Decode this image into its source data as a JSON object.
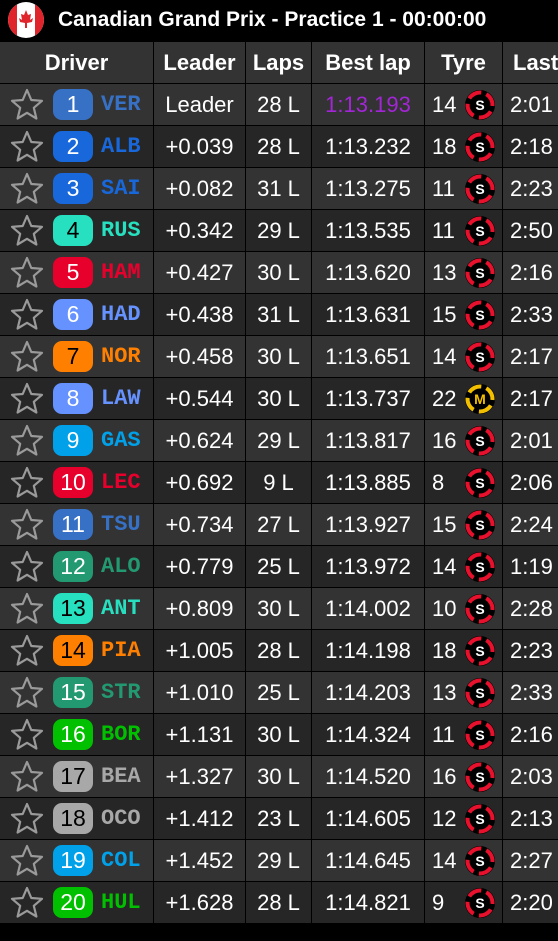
{
  "header": {
    "title": "Canadian Grand Prix - Practice 1 - 00:00:00"
  },
  "table": {
    "columns": [
      "Driver",
      "Leader",
      "Laps",
      "Best lap",
      "Tyre",
      "Last"
    ],
    "highlight_color": "#a326d6",
    "tyre_colors": {
      "S": "#e8112d",
      "M": "#f2c000"
    },
    "rows": [
      {
        "pos": 1,
        "code": "VER",
        "color": "#3671c6",
        "gap": "Leader",
        "laps": "28 L",
        "best": "1:13.193",
        "best_highlight": true,
        "tyre_age": 14,
        "tyre": "S",
        "last": "2:01"
      },
      {
        "pos": 2,
        "code": "ALB",
        "color": "#1868db",
        "gap": "+0.039",
        "laps": "28 L",
        "best": "1:13.232",
        "tyre_age": 18,
        "tyre": "S",
        "last": "2:18"
      },
      {
        "pos": 3,
        "code": "SAI",
        "color": "#1868db",
        "gap": "+0.082",
        "laps": "31 L",
        "best": "1:13.275",
        "tyre_age": 11,
        "tyre": "S",
        "last": "2:23"
      },
      {
        "pos": 4,
        "code": "RUS",
        "color": "#27e0c0",
        "gap": "+0.342",
        "laps": "29 L",
        "best": "1:13.535",
        "tyre_age": 11,
        "tyre": "S",
        "last": "2:50"
      },
      {
        "pos": 5,
        "code": "HAM",
        "color": "#e8002d",
        "gap": "+0.427",
        "laps": "30 L",
        "best": "1:13.620",
        "tyre_age": 13,
        "tyre": "S",
        "last": "2:16"
      },
      {
        "pos": 6,
        "code": "HAD",
        "color": "#6692ff",
        "gap": "+0.438",
        "laps": "31 L",
        "best": "1:13.631",
        "tyre_age": 15,
        "tyre": "S",
        "last": "2:33"
      },
      {
        "pos": 7,
        "code": "NOR",
        "color": "#ff8000",
        "gap": "+0.458",
        "laps": "30 L",
        "best": "1:13.651",
        "tyre_age": 14,
        "tyre": "S",
        "last": "2:17"
      },
      {
        "pos": 8,
        "code": "LAW",
        "color": "#6692ff",
        "gap": "+0.544",
        "laps": "30 L",
        "best": "1:13.737",
        "tyre_age": 22,
        "tyre": "M",
        "last": "2:17"
      },
      {
        "pos": 9,
        "code": "GAS",
        "color": "#00a1e8",
        "gap": "+0.624",
        "laps": "29 L",
        "best": "1:13.817",
        "tyre_age": 16,
        "tyre": "S",
        "last": "2:01"
      },
      {
        "pos": 10,
        "code": "LEC",
        "color": "#e8002d",
        "gap": "+0.692",
        "laps": "9 L",
        "best": "1:13.885",
        "tyre_age": 8,
        "tyre": "S",
        "last": "2:06"
      },
      {
        "pos": 11,
        "code": "TSU",
        "color": "#3671c6",
        "gap": "+0.734",
        "laps": "27 L",
        "best": "1:13.927",
        "tyre_age": 15,
        "tyre": "S",
        "last": "2:24"
      },
      {
        "pos": 12,
        "code": "ALO",
        "color": "#229971",
        "gap": "+0.779",
        "laps": "25 L",
        "best": "1:13.972",
        "tyre_age": 14,
        "tyre": "S",
        "last": "1:19"
      },
      {
        "pos": 13,
        "code": "ANT",
        "color": "#27e0c0",
        "gap": "+0.809",
        "laps": "30 L",
        "best": "1:14.002",
        "tyre_age": 10,
        "tyre": "S",
        "last": "2:28"
      },
      {
        "pos": 14,
        "code": "PIA",
        "color": "#ff8000",
        "gap": "+1.005",
        "laps": "28 L",
        "best": "1:14.198",
        "tyre_age": 18,
        "tyre": "S",
        "last": "2:23"
      },
      {
        "pos": 15,
        "code": "STR",
        "color": "#229971",
        "gap": "+1.010",
        "laps": "25 L",
        "best": "1:14.203",
        "tyre_age": 13,
        "tyre": "S",
        "last": "2:33"
      },
      {
        "pos": 16,
        "code": "BOR",
        "color": "#00c000",
        "gap": "+1.131",
        "laps": "30 L",
        "best": "1:14.324",
        "tyre_age": 11,
        "tyre": "S",
        "last": "2:16"
      },
      {
        "pos": 17,
        "code": "BEA",
        "color": "#a8a8a8",
        "gap": "+1.327",
        "laps": "30 L",
        "best": "1:14.520",
        "tyre_age": 16,
        "tyre": "S",
        "last": "2:03"
      },
      {
        "pos": 18,
        "code": "OCO",
        "color": "#a8a8a8",
        "gap": "+1.412",
        "laps": "23 L",
        "best": "1:14.605",
        "tyre_age": 12,
        "tyre": "S",
        "last": "2:13"
      },
      {
        "pos": 19,
        "code": "COL",
        "color": "#00a1e8",
        "gap": "+1.452",
        "laps": "29 L",
        "best": "1:14.645",
        "tyre_age": 14,
        "tyre": "S",
        "last": "2:27"
      },
      {
        "pos": 20,
        "code": "HUL",
        "color": "#00c000",
        "gap": "+1.628",
        "laps": "28 L",
        "best": "1:14.821",
        "tyre_age": 9,
        "tyre": "S",
        "last": "2:20"
      }
    ]
  }
}
